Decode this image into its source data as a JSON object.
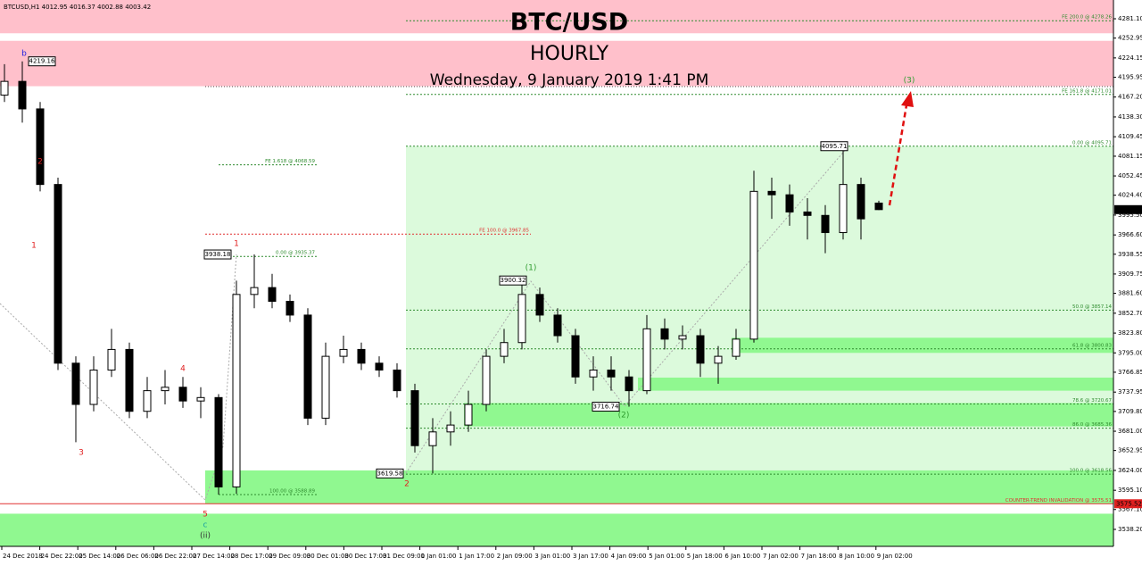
{
  "chart_data": {
    "type": "candlestick",
    "symbol_header": "BTCUSD,H1  4012.95 4016.37 4002.88 4003.42",
    "title": "BTC/USD",
    "subtitle": "HOURLY",
    "timestamp": "Wednesday, 9 January 2019 1:41 PM",
    "ylim": [
      3513.5,
      4308.4
    ],
    "yticks": [
      {
        "value": 4281.1,
        "label": "4281.10"
      },
      4252.95,
      4224.15,
      4195.95,
      {
        "value": 4167.2,
        "label": "4167.20"
      },
      {
        "value": 4138.3,
        "label": "4138.30"
      },
      4109.45,
      4081.15,
      4052.45,
      {
        "value": 4024.4,
        "label": "4024.40"
      },
      {
        "value": 3995.5,
        "label": "3995.50"
      },
      {
        "value": 3966.6,
        "label": "3966.60"
      },
      3938.55,
      3909.75,
      {
        "value": 3881.6,
        "label": "3881.60"
      },
      {
        "value": 3852.7,
        "label": "3852.70"
      },
      {
        "value": 3823.8,
        "label": "3823.80"
      },
      {
        "value": 3795,
        "label": "3795.00"
      },
      3766.85,
      3737.95,
      {
        "value": 3709.8,
        "label": "3709.80"
      },
      {
        "value": 3681,
        "label": "3681.00"
      },
      3652.95,
      {
        "value": 3624,
        "label": "3624.00"
      },
      {
        "value": 3595.1,
        "label": "3595.10"
      },
      {
        "value": 3567.1,
        "label": "3567.10"
      },
      {
        "value": 3538.2,
        "label": "3538.20"
      }
    ],
    "categories": [
      "24 Dec 2018",
      "24 Dec 22:00",
      "25 Dec 14:00",
      "26 Dec 06:00",
      "26 Dec 22:00",
      "27 Dec 14:00",
      "28 Dec 17:00",
      "29 Dec 09:00",
      "30 Dec 01:00",
      "30 Dec 17:00",
      "31 Dec 09:00",
      "1 Jan 01:00",
      "1 Jan 17:00",
      "2 Jan 09:00",
      "3 Jan 01:00",
      "3 Jan 17:00",
      "4 Jan 09:00",
      "5 Jan 01:00",
      "5 Jan 18:00",
      "6 Jan 10:00",
      "7 Jan 02:00",
      "7 Jan 18:00",
      "8 Jan 10:00",
      "9 Jan 02:00"
    ],
    "open": [
      4170,
      4190,
      4150,
      4040,
      3780,
      3720,
      3770,
      3800,
      3710,
      3740,
      3745,
      3725,
      3730,
      3600,
      3880,
      3890,
      3870,
      3850,
      3700,
      3790,
      3800,
      3780,
      3770,
      3740,
      3660,
      3680,
      3690,
      3720,
      3790,
      3810,
      3880,
      3850,
      3820,
      3760,
      3770,
      3760,
      3740,
      3830,
      3815,
      3820,
      3780,
      3790,
      3815,
      4030,
      4025,
      4000,
      3995,
      3970,
      4040,
      4012.95
    ],
    "high": [
      4215,
      4219.16,
      4160,
      4050,
      3790,
      3790,
      3830,
      3810,
      3760,
      3770,
      3760,
      3745,
      3735,
      3900,
      3938.18,
      3910,
      3880,
      3860,
      3810,
      3820,
      3810,
      3790,
      3780,
      3750,
      3700,
      3710,
      3740,
      3800,
      3830,
      3900.32,
      3890,
      3860,
      3830,
      3790,
      3790,
      3770,
      3850,
      3845,
      3835,
      3830,
      3805,
      3830,
      4060,
      4050,
      4040,
      4020,
      4010,
      4095.71,
      4050,
      4016.37
    ],
    "low": [
      4160,
      4130,
      4030,
      3770,
      3665,
      3710,
      3760,
      3700,
      3700,
      3720,
      3715,
      3700,
      3588.89,
      3590,
      3860,
      3860,
      3840,
      3690,
      3690,
      3780,
      3770,
      3760,
      3730,
      3650,
      3619.58,
      3660,
      3680,
      3710,
      3780,
      3800,
      3840,
      3810,
      3750,
      3740,
      3740,
      3716.74,
      3735,
      3800,
      3800,
      3760,
      3750,
      3785,
      3810,
      3990,
      3980,
      3960,
      3940,
      3960,
      3960,
      4002.88
    ],
    "close": [
      4190,
      4150,
      4040,
      3780,
      3720,
      3770,
      3800,
      3710,
      3740,
      3745,
      3725,
      3730,
      3600,
      3880,
      3890,
      3870,
      3850,
      3700,
      3790,
      3800,
      3780,
      3770,
      3740,
      3660,
      3680,
      3690,
      3720,
      3790,
      3810,
      3880,
      3850,
      3820,
      3760,
      3770,
      3760,
      3740,
      3830,
      3815,
      3820,
      3780,
      3790,
      3815,
      4030,
      4025,
      4000,
      3995,
      3970,
      4040,
      3990,
      4003.42
    ],
    "zones": [
      {
        "from": 4308.4,
        "to": 4260,
        "color": "#ffc0cb"
      },
      {
        "from": 4249,
        "to": 4183,
        "color": "#ffc0cb"
      },
      {
        "from": 4095.71,
        "to": 3575.51,
        "color": "#dcfadc"
      },
      {
        "from": 3624,
        "to": 3575.51,
        "color": "#90f890"
      },
      {
        "from": 3561,
        "to": 3513.5,
        "color": "#90f890"
      },
      {
        "from": 3722,
        "to": 3688,
        "color": "#90f890"
      },
      {
        "from": 3759,
        "to": 3740,
        "color": "#90f890"
      },
      {
        "from": 3817,
        "to": 3795,
        "color": "#90f890"
      }
    ],
    "fib_lines": [
      {
        "label": "FE 200.0 @ 4278.26",
        "price": 4278.26,
        "color": "#2e8b2e"
      },
      {
        "label": "FE 161.8 @ 4171.01",
        "price": 4171.01,
        "color": "#2e8b2e"
      },
      {
        "label": "0.00 @ 4095.71",
        "price": 4095.71,
        "color": "#2e8b2e"
      },
      {
        "label": "FE 1.618 @ 4068.59",
        "price": 4068.59,
        "color": "#2e8b2e"
      },
      {
        "label": "FE 100.0 @ 3967.85",
        "price": 3967.85,
        "color": "#e03030"
      },
      {
        "label": "0.00 @ 3935.37",
        "price": 3935.37,
        "color": "#2e8b2e"
      },
      {
        "label": "50.0 @ 3857.14",
        "price": 3857.14,
        "color": "#2e8b2e"
      },
      {
        "label": "61.8 @ 3800.83",
        "price": 3800.83,
        "color": "#2e8b2e"
      },
      {
        "label": "78.6 @ 3720.67",
        "price": 3720.67,
        "color": "#2e8b2e"
      },
      {
        "label": "86.0 @ 3685.36",
        "price": 3685.36,
        "color": "#2e8b2e"
      },
      {
        "label": "100.0 @ 3618.56",
        "price": 3618.56,
        "color": "#2e8b2e"
      },
      {
        "label": "100.00 @ 3588.89",
        "price": 3588.89,
        "color": "#2e8b2e"
      },
      {
        "label": "COUNTER-TREND INVALIDATION @ 3575.51",
        "price": 3575.51,
        "color": "#e03030"
      }
    ],
    "price_tags": [
      4219.16,
      3938.18,
      3900.32,
      3716.74,
      3619.58,
      4095.71
    ],
    "current_price": 4003.42,
    "invalidation_tag": 3575.52,
    "wave_labels": [
      {
        "text": "b",
        "color": "#2020e0"
      },
      {
        "text": "2",
        "color": "#e02020"
      },
      {
        "text": "1",
        "color": "#e02020"
      },
      {
        "text": "3",
        "color": "#e02020"
      },
      {
        "text": "4",
        "color": "#e02020"
      },
      {
        "text": "5",
        "color": "#e02020"
      },
      {
        "text": "c",
        "color": "#1aa0a0"
      },
      {
        "text": "(ii)",
        "color": "#333333"
      },
      {
        "text": "1",
        "color": "#e02020"
      },
      {
        "text": "2",
        "color": "#e02020"
      },
      {
        "text": "(1)",
        "color": "#2e9b2e"
      },
      {
        "text": "(2)",
        "color": "#2e9b2e"
      },
      {
        "text": "(3)",
        "color": "#2e9b2e"
      }
    ]
  }
}
